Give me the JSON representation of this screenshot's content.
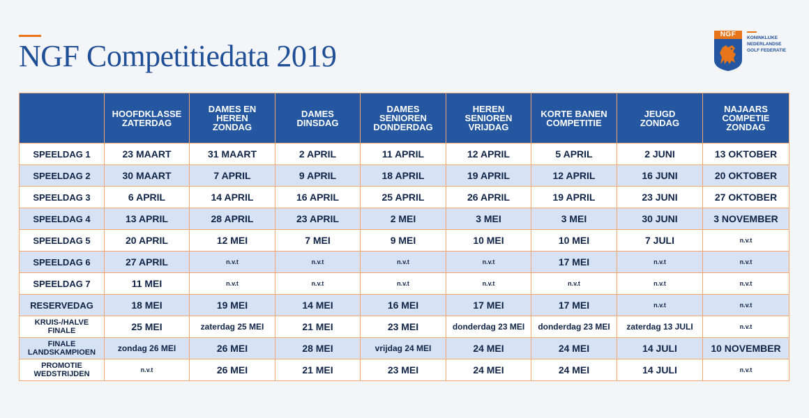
{
  "header": {
    "title": "NGF Competitiedata 2019"
  },
  "logo": {
    "badge": "NGF",
    "lines": [
      "KONINKLIJKE",
      "NEDERLANDSE",
      "GOLF FEDERATIE"
    ]
  },
  "colors": {
    "accent": "#e8751a",
    "brand_blue": "#24579f",
    "title_blue": "#1f4f96",
    "row_alt": "#d7e3f4"
  },
  "table": {
    "columns": [
      "",
      "HOOFDKLASSE\nZATERDAG",
      "DAMES EN\nHEREN\nZONDAG",
      "DAMES\nDINSDAG",
      "DAMES\nSENIOREN\nDONDERDAG",
      "HEREN\nSENIOREN\nVRIJDAG",
      "KORTE BANEN\nCOMPETITIE",
      "JEUGD\nZONDAG",
      "NAJAARS\nCOMPETIE\nZONDAG"
    ],
    "rows": [
      {
        "label": "SPEELDAG 1",
        "cells": [
          "23 MAART",
          "31 MAART",
          "2 APRIL",
          "11 APRIL",
          "12 APRIL",
          "5 APRIL",
          "2 JUNI",
          "13 OKTOBER"
        ]
      },
      {
        "label": "SPEELDAG 2",
        "cells": [
          "30 MAART",
          "7 APRIL",
          "9 APRIL",
          "18 APRIL",
          "19 APRIL",
          "12 APRIL",
          "16 JUNI",
          "20 OKTOBER"
        ]
      },
      {
        "label": "SPEELDAG 3",
        "cells": [
          "6 APRIL",
          "14 APRIL",
          "16 APRIL",
          "25 APRIL",
          "26 APRIL",
          "19 APRIL",
          "23 JUNI",
          "27 OKTOBER"
        ]
      },
      {
        "label": "SPEELDAG 4",
        "cells": [
          "13 APRIL",
          "28 APRIL",
          "23 APRIL",
          "2 MEI",
          "3 MEI",
          "3 MEI",
          "30 JUNI",
          "3 NOVEMBER"
        ]
      },
      {
        "label": "SPEELDAG 5",
        "cells": [
          "20 APRIL",
          "12 MEI",
          "7 MEI",
          "9 MEI",
          "10 MEI",
          "10 MEI",
          "7 JULI",
          "n.v.t"
        ]
      },
      {
        "label": "SPEELDAG 6",
        "cells": [
          "27 APRIL",
          "n.v.t",
          "n.v.t",
          "n.v.t",
          "n.v.t",
          "17 MEI",
          "n.v.t",
          "n.v.t"
        ]
      },
      {
        "label": "SPEELDAG 7",
        "cells": [
          "11 MEI",
          "n.v.t",
          "n.v.t",
          "n.v.t",
          "n.v.t",
          "n.v.t",
          "n.v.t",
          "n.v.t"
        ]
      },
      {
        "label": "RESERVEDAG",
        "cells": [
          "18 MEI",
          "19 MEI",
          "14 MEI",
          "16 MEI",
          "17 MEI",
          "17 MEI",
          "n.v.t",
          "n.v.t"
        ]
      },
      {
        "label": "KRUIS-/HALVE\nFINALE",
        "cells": [
          "25 MEI",
          "zaterdag 25 MEI",
          "21 MEI",
          "23 MEI",
          "donderdag 23 MEI",
          "donderdag 23 MEI",
          "zaterdag 13 JULI",
          "n.v.t"
        ]
      },
      {
        "label": "FINALE\nLANDSKAMPIOEN",
        "cells": [
          "zondag 26 MEI",
          "26 MEI",
          "28 MEI",
          "vrijdag 24 MEI",
          "24 MEI",
          "24 MEI",
          "14 JULI",
          "10 NOVEMBER"
        ]
      },
      {
        "label": "PROMOTIE\nWEDSTRIJDEN",
        "cells": [
          "n.v.t",
          "26 MEI",
          "21 MEI",
          "23 MEI",
          "24 MEI",
          "24 MEI",
          "14 JULI",
          "n.v.t"
        ]
      }
    ]
  }
}
